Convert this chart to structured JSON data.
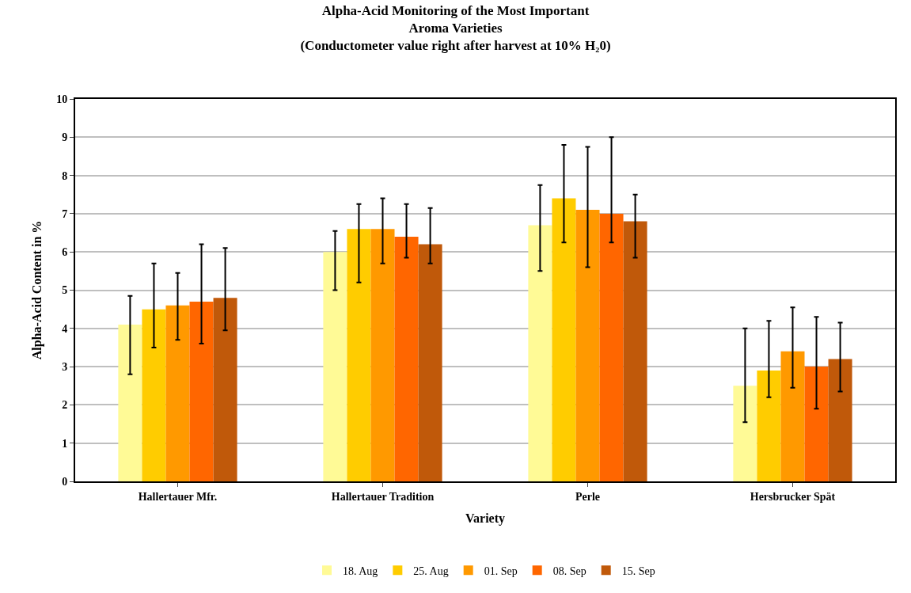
{
  "chart_data": {
    "type": "bar",
    "title": "Alpha-Acid Monitoring of the Most Important\nAroma Varieties\n(Conductometer value right after harvest at 10% H₂0)",
    "xlabel": "Variety",
    "ylabel": "Alpha-Acid Content in %",
    "categories": [
      "Hallertauer Mfr.",
      "Hallertauer Tradition",
      "Perle",
      "Hersbrucker Spät"
    ],
    "series": [
      {
        "name": "18. Aug",
        "color": "#fffa96",
        "values": [
          4.1,
          6.0,
          6.7,
          2.5
        ],
        "errors": [
          [
            2.8,
            4.85
          ],
          [
            5.0,
            6.55
          ],
          [
            5.5,
            7.75
          ],
          [
            1.55,
            4.0
          ]
        ]
      },
      {
        "name": "25. Aug",
        "color": "#ffcc00",
        "values": [
          4.5,
          6.6,
          7.4,
          2.9
        ],
        "errors": [
          [
            3.5,
            5.7
          ],
          [
            5.2,
            7.25
          ],
          [
            6.25,
            8.8
          ],
          [
            2.2,
            4.2
          ]
        ]
      },
      {
        "name": "01. Sep",
        "color": "#ff9900",
        "values": [
          4.6,
          6.6,
          7.1,
          3.4
        ],
        "errors": [
          [
            3.7,
            5.45
          ],
          [
            5.7,
            7.4
          ],
          [
            5.6,
            8.75
          ],
          [
            2.45,
            4.55
          ]
        ]
      },
      {
        "name": "08. Sep",
        "color": "#ff6600",
        "values": [
          4.7,
          6.4,
          7.0,
          3.0
        ],
        "errors": [
          [
            3.6,
            6.2
          ],
          [
            5.85,
            7.25
          ],
          [
            6.25,
            9.0
          ],
          [
            1.9,
            4.3
          ]
        ]
      },
      {
        "name": "15. Sep",
        "color": "#c0590a",
        "values": [
          4.8,
          6.2,
          6.8,
          3.2
        ],
        "errors": [
          [
            3.95,
            6.1
          ],
          [
            5.7,
            7.15
          ],
          [
            5.85,
            7.5
          ],
          [
            2.35,
            4.15
          ]
        ]
      }
    ],
    "ylim": [
      0,
      10
    ],
    "yticks": [
      0,
      1,
      2,
      3,
      4,
      5,
      6,
      7,
      8,
      9,
      10
    ],
    "grid": "y",
    "legend": "bottom"
  }
}
